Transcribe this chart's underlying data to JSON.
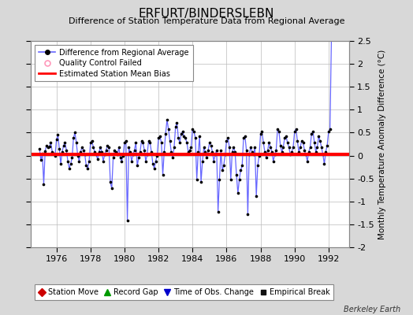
{
  "title": "ERFURT/BINDERSLEBN",
  "subtitle": "Difference of Station Temperature Data from Regional Average",
  "ylabel": "Monthly Temperature Anomaly Difference (°C)",
  "background_color": "#d8d8d8",
  "plot_bg_color": "#ffffff",
  "grid_color": "#bbbbbb",
  "bias_value": 0.03,
  "xlim": [
    1974.5,
    1993.2
  ],
  "ylim": [
    -2.0,
    2.5
  ],
  "yticks": [
    -2.0,
    -1.5,
    -1.0,
    -0.5,
    0.0,
    0.5,
    1.0,
    1.5,
    2.0,
    2.5
  ],
  "xticks": [
    1976,
    1978,
    1980,
    1982,
    1984,
    1986,
    1988,
    1990,
    1992
  ],
  "line_color": "#6666ff",
  "dot_color": "#000000",
  "bias_color": "#ff0000",
  "watermark": "Berkeley Earth",
  "series": [
    [
      1975.0,
      0.15
    ],
    [
      1975.083,
      -0.1
    ],
    [
      1975.167,
      0.05
    ],
    [
      1975.25,
      -0.62
    ],
    [
      1975.333,
      0.1
    ],
    [
      1975.417,
      0.22
    ],
    [
      1975.5,
      0.18
    ],
    [
      1975.583,
      0.2
    ],
    [
      1975.667,
      0.28
    ],
    [
      1975.75,
      0.08
    ],
    [
      1975.833,
      0.05
    ],
    [
      1975.917,
      0.0
    ],
    [
      1976.0,
      0.35
    ],
    [
      1976.083,
      0.45
    ],
    [
      1976.167,
      0.15
    ],
    [
      1976.25,
      -0.18
    ],
    [
      1976.333,
      0.08
    ],
    [
      1976.417,
      0.22
    ],
    [
      1976.5,
      0.28
    ],
    [
      1976.583,
      0.12
    ],
    [
      1976.667,
      -0.12
    ],
    [
      1976.75,
      -0.28
    ],
    [
      1976.833,
      -0.18
    ],
    [
      1976.917,
      -0.05
    ],
    [
      1977.0,
      0.38
    ],
    [
      1977.083,
      0.5
    ],
    [
      1977.167,
      0.28
    ],
    [
      1977.25,
      0.0
    ],
    [
      1977.333,
      -0.12
    ],
    [
      1977.417,
      0.08
    ],
    [
      1977.5,
      0.18
    ],
    [
      1977.583,
      0.12
    ],
    [
      1977.667,
      0.02
    ],
    [
      1977.75,
      -0.22
    ],
    [
      1977.833,
      -0.28
    ],
    [
      1977.917,
      -0.12
    ],
    [
      1978.0,
      0.28
    ],
    [
      1978.083,
      0.32
    ],
    [
      1978.167,
      0.18
    ],
    [
      1978.25,
      0.08
    ],
    [
      1978.333,
      0.02
    ],
    [
      1978.417,
      -0.08
    ],
    [
      1978.5,
      0.08
    ],
    [
      1978.583,
      0.18
    ],
    [
      1978.667,
      0.08
    ],
    [
      1978.75,
      -0.12
    ],
    [
      1978.833,
      0.02
    ],
    [
      1978.917,
      0.12
    ],
    [
      1979.0,
      0.22
    ],
    [
      1979.083,
      0.18
    ],
    [
      1979.167,
      -0.58
    ],
    [
      1979.25,
      -0.72
    ],
    [
      1979.333,
      -0.05
    ],
    [
      1979.417,
      0.12
    ],
    [
      1979.5,
      0.08
    ],
    [
      1979.583,
      0.02
    ],
    [
      1979.667,
      0.18
    ],
    [
      1979.75,
      -0.05
    ],
    [
      1979.833,
      -0.12
    ],
    [
      1979.917,
      0.0
    ],
    [
      1980.0,
      0.28
    ],
    [
      1980.083,
      0.32
    ],
    [
      1980.167,
      -1.42
    ],
    [
      1980.25,
      0.18
    ],
    [
      1980.333,
      0.08
    ],
    [
      1980.417,
      -0.12
    ],
    [
      1980.5,
      0.02
    ],
    [
      1980.583,
      0.12
    ],
    [
      1980.667,
      0.28
    ],
    [
      1980.75,
      -0.22
    ],
    [
      1980.833,
      -0.05
    ],
    [
      1980.917,
      0.08
    ],
    [
      1981.0,
      0.32
    ],
    [
      1981.083,
      0.28
    ],
    [
      1981.167,
      0.12
    ],
    [
      1981.25,
      -0.12
    ],
    [
      1981.333,
      0.02
    ],
    [
      1981.417,
      0.32
    ],
    [
      1981.5,
      0.28
    ],
    [
      1981.583,
      0.08
    ],
    [
      1981.667,
      -0.18
    ],
    [
      1981.75,
      -0.28
    ],
    [
      1981.833,
      -0.12
    ],
    [
      1981.917,
      0.0
    ],
    [
      1982.0,
      0.38
    ],
    [
      1982.083,
      0.42
    ],
    [
      1982.167,
      0.28
    ],
    [
      1982.25,
      -0.42
    ],
    [
      1982.333,
      0.08
    ],
    [
      1982.417,
      0.48
    ],
    [
      1982.5,
      0.78
    ],
    [
      1982.583,
      0.58
    ],
    [
      1982.667,
      0.32
    ],
    [
      1982.75,
      0.08
    ],
    [
      1982.833,
      -0.05
    ],
    [
      1982.917,
      0.18
    ],
    [
      1983.0,
      0.62
    ],
    [
      1983.083,
      0.72
    ],
    [
      1983.167,
      0.38
    ],
    [
      1983.25,
      0.28
    ],
    [
      1983.333,
      0.48
    ],
    [
      1983.417,
      0.52
    ],
    [
      1983.5,
      0.42
    ],
    [
      1983.583,
      0.38
    ],
    [
      1983.667,
      0.28
    ],
    [
      1983.75,
      0.08
    ],
    [
      1983.833,
      0.12
    ],
    [
      1983.917,
      0.18
    ],
    [
      1984.0,
      0.58
    ],
    [
      1984.083,
      0.52
    ],
    [
      1984.167,
      0.38
    ],
    [
      1984.25,
      -0.52
    ],
    [
      1984.333,
      0.08
    ],
    [
      1984.417,
      0.42
    ],
    [
      1984.5,
      -0.58
    ],
    [
      1984.583,
      -0.12
    ],
    [
      1984.667,
      0.18
    ],
    [
      1984.75,
      0.08
    ],
    [
      1984.833,
      -0.05
    ],
    [
      1984.917,
      0.12
    ],
    [
      1985.0,
      0.28
    ],
    [
      1985.083,
      0.22
    ],
    [
      1985.167,
      0.08
    ],
    [
      1985.25,
      -0.12
    ],
    [
      1985.333,
      0.02
    ],
    [
      1985.417,
      0.12
    ],
    [
      1985.5,
      -1.22
    ],
    [
      1985.583,
      -0.52
    ],
    [
      1985.667,
      0.12
    ],
    [
      1985.75,
      -0.32
    ],
    [
      1985.833,
      -0.22
    ],
    [
      1985.917,
      0.02
    ],
    [
      1986.0,
      0.32
    ],
    [
      1986.083,
      0.38
    ],
    [
      1986.167,
      0.18
    ],
    [
      1986.25,
      -0.52
    ],
    [
      1986.333,
      0.08
    ],
    [
      1986.417,
      0.18
    ],
    [
      1986.5,
      0.08
    ],
    [
      1986.583,
      -0.42
    ],
    [
      1986.667,
      -0.82
    ],
    [
      1986.75,
      -0.52
    ],
    [
      1986.833,
      -0.32
    ],
    [
      1986.917,
      -0.22
    ],
    [
      1987.0,
      0.38
    ],
    [
      1987.083,
      0.42
    ],
    [
      1987.167,
      0.12
    ],
    [
      1987.25,
      -1.28
    ],
    [
      1987.333,
      0.02
    ],
    [
      1987.417,
      0.18
    ],
    [
      1987.5,
      0.08
    ],
    [
      1987.583,
      0.02
    ],
    [
      1987.667,
      0.18
    ],
    [
      1987.75,
      -0.88
    ],
    [
      1987.833,
      -0.22
    ],
    [
      1987.917,
      0.0
    ],
    [
      1988.0,
      0.48
    ],
    [
      1988.083,
      0.52
    ],
    [
      1988.167,
      0.28
    ],
    [
      1988.25,
      0.08
    ],
    [
      1988.333,
      -0.05
    ],
    [
      1988.417,
      0.12
    ],
    [
      1988.5,
      0.28
    ],
    [
      1988.583,
      0.18
    ],
    [
      1988.667,
      0.08
    ],
    [
      1988.75,
      -0.12
    ],
    [
      1988.833,
      0.02
    ],
    [
      1988.917,
      0.12
    ],
    [
      1989.0,
      0.58
    ],
    [
      1989.083,
      0.52
    ],
    [
      1989.167,
      0.22
    ],
    [
      1989.25,
      0.08
    ],
    [
      1989.333,
      0.18
    ],
    [
      1989.417,
      0.38
    ],
    [
      1989.5,
      0.42
    ],
    [
      1989.583,
      0.28
    ],
    [
      1989.667,
      0.18
    ],
    [
      1989.75,
      0.02
    ],
    [
      1989.833,
      0.08
    ],
    [
      1989.917,
      0.18
    ],
    [
      1990.0,
      0.52
    ],
    [
      1990.083,
      0.58
    ],
    [
      1990.167,
      0.32
    ],
    [
      1990.25,
      0.08
    ],
    [
      1990.333,
      0.18
    ],
    [
      1990.417,
      0.32
    ],
    [
      1990.5,
      0.28
    ],
    [
      1990.583,
      0.12
    ],
    [
      1990.667,
      0.02
    ],
    [
      1990.75,
      -0.12
    ],
    [
      1990.833,
      0.08
    ],
    [
      1990.917,
      0.18
    ],
    [
      1991.0,
      0.48
    ],
    [
      1991.083,
      0.52
    ],
    [
      1991.167,
      0.28
    ],
    [
      1991.25,
      0.08
    ],
    [
      1991.333,
      0.18
    ],
    [
      1991.417,
      0.42
    ],
    [
      1991.5,
      0.32
    ],
    [
      1991.583,
      0.18
    ],
    [
      1991.667,
      0.02
    ],
    [
      1991.75,
      -0.18
    ],
    [
      1991.833,
      0.08
    ],
    [
      1991.917,
      0.22
    ],
    [
      1992.0,
      0.52
    ],
    [
      1992.083,
      0.58
    ],
    [
      1992.167,
      2.58
    ]
  ]
}
